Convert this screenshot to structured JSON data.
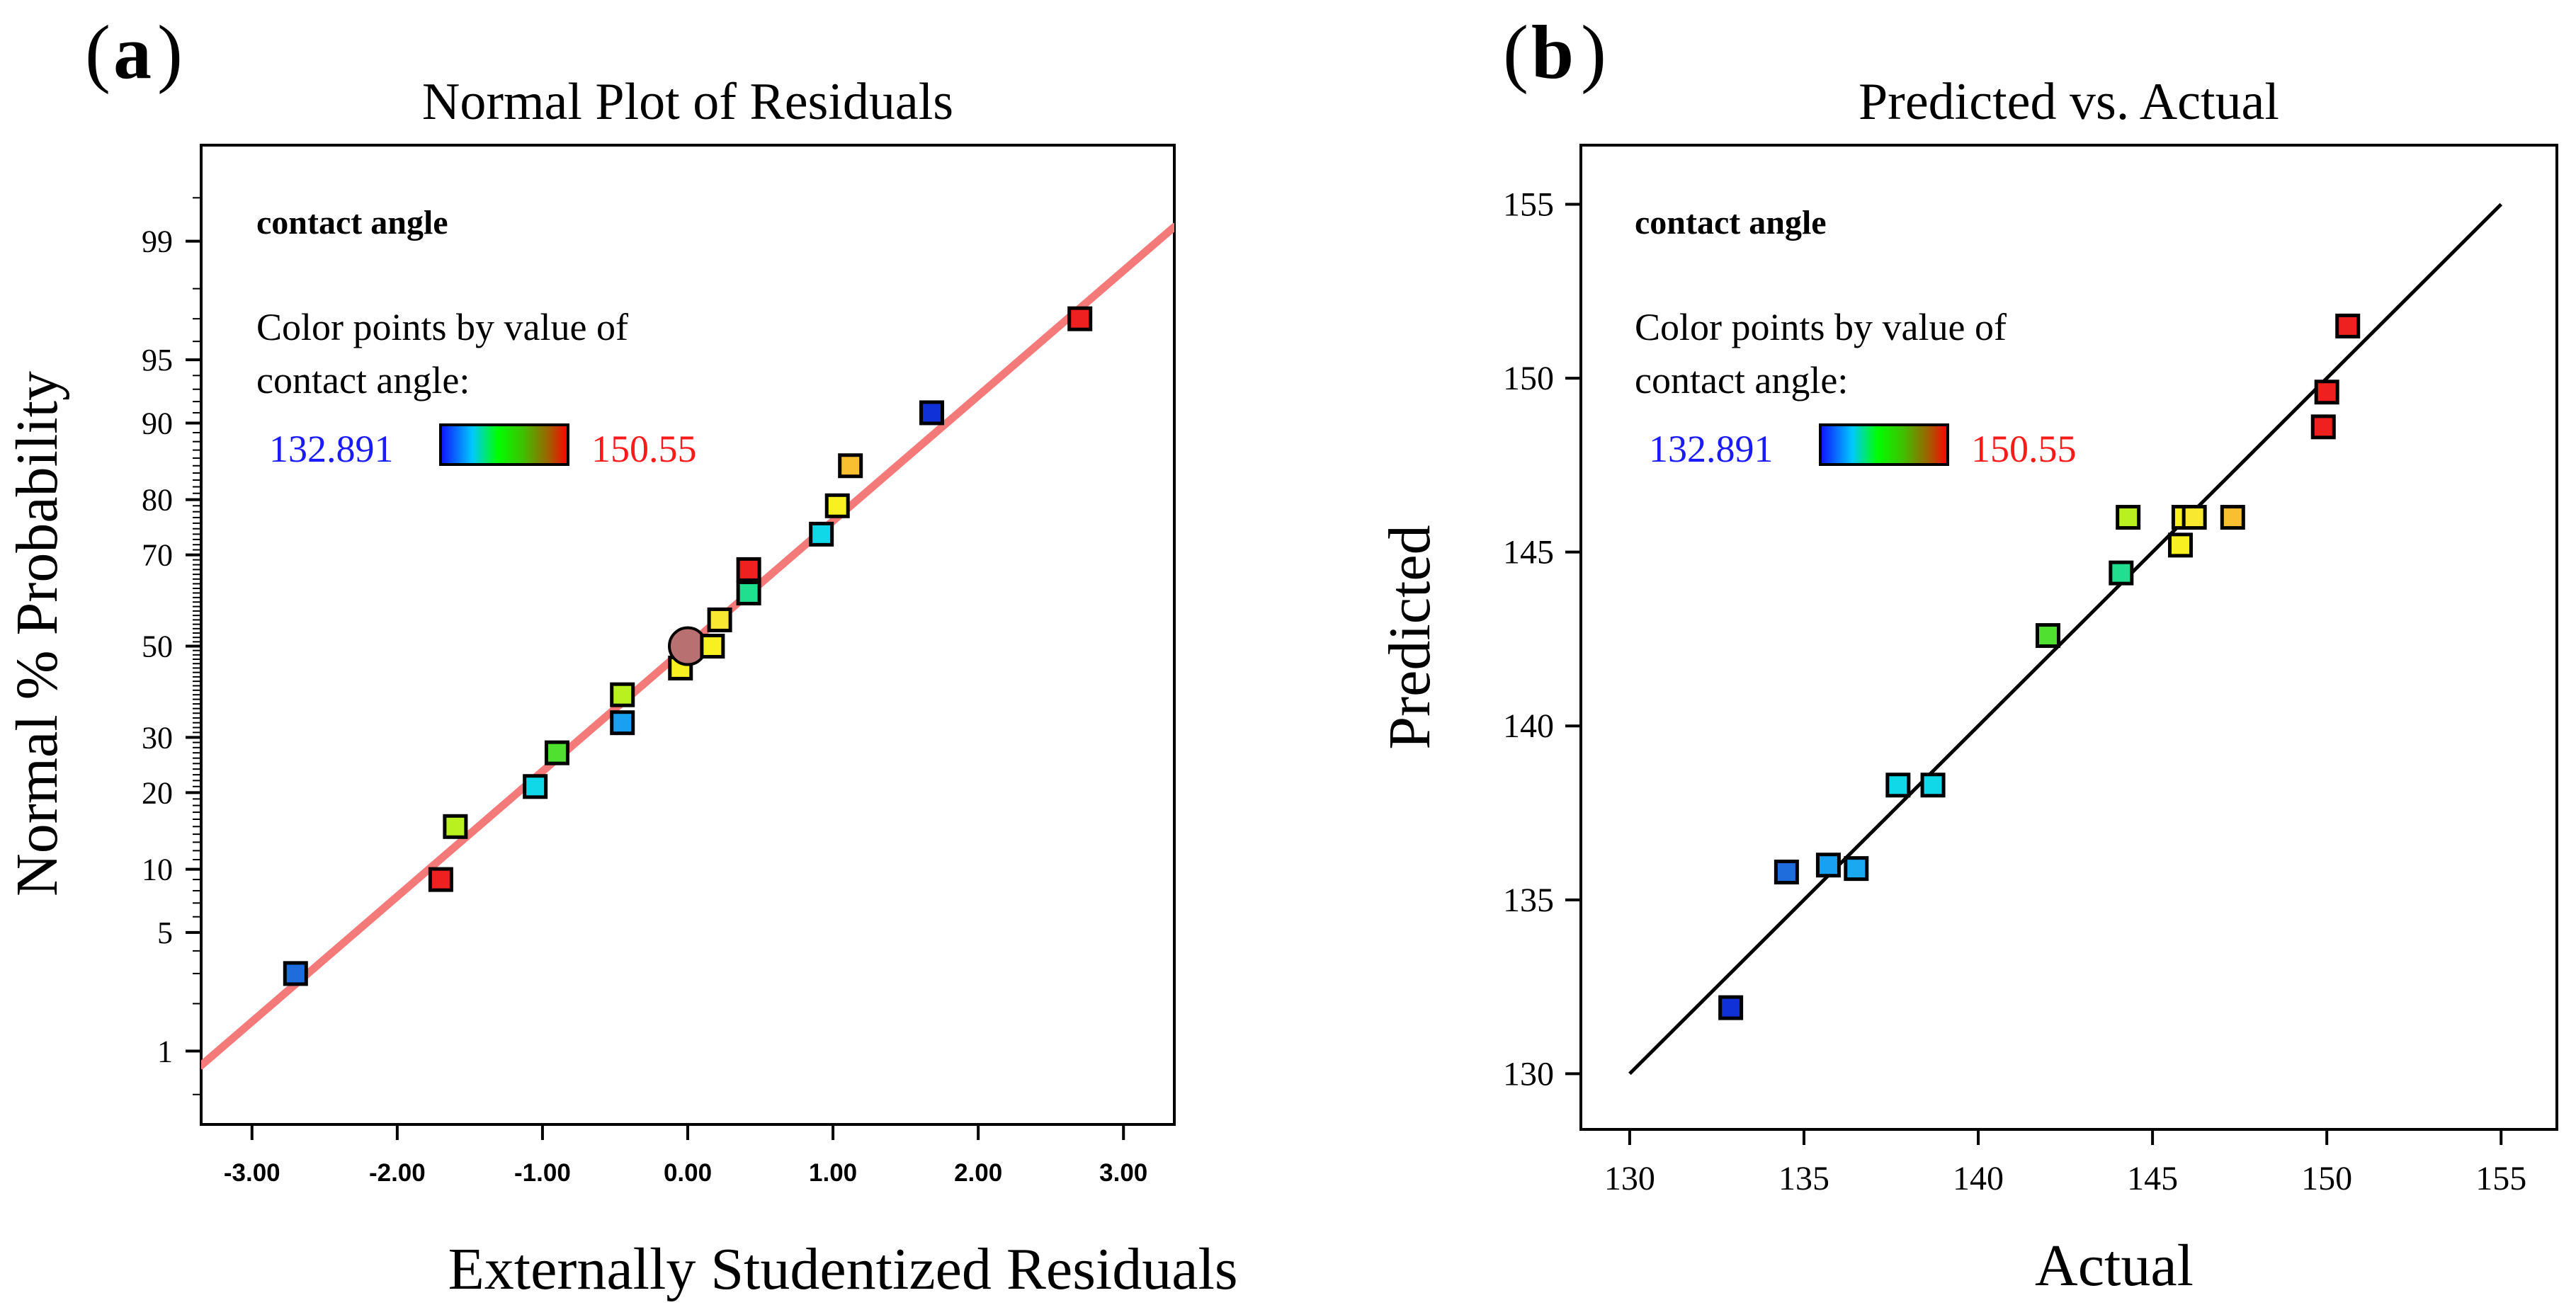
{
  "chart_data": [
    {
      "panel_label": "a",
      "type": "scatter",
      "title": "Normal Plot of Residuals",
      "xlabel": "Externally Studentized Residuals",
      "ylabel": "Normal % Probability",
      "xlim": [
        -3.35,
        3.35
      ],
      "ylim_probability": [
        0.3,
        99.8
      ],
      "y_scale": "normal-probability",
      "xticks": [
        "-3.00",
        "-2.00",
        "-1.00",
        "0.00",
        "1.00",
        "2.00",
        "3.00"
      ],
      "xtick_values": [
        -3,
        -2,
        -1,
        0,
        1,
        2,
        3
      ],
      "yticks": [
        1,
        5,
        10,
        20,
        30,
        50,
        70,
        80,
        90,
        95,
        99
      ],
      "legend": {
        "response": "contact angle",
        "color_caption_1": "Color points by value of",
        "color_caption_2": "contact angle:",
        "min_label": "132.891",
        "max_label": "150.55",
        "gradient": [
          "#1010ff",
          "#00e0ff",
          "#00ff00",
          "#c0ff00",
          "#ffff00",
          "#ff0000"
        ]
      },
      "reference_line": {
        "color": "#f47a7a",
        "points": [
          [
            -3.35,
            0.8
          ],
          [
            3.35,
            99.2
          ]
        ]
      },
      "points": [
        {
          "x": -2.7,
          "y": 3,
          "color": "#1f6ddc"
        },
        {
          "x": -1.7,
          "y": 9,
          "color": "#ee2020"
        },
        {
          "x": -1.6,
          "y": 15,
          "color": "#b8f020"
        },
        {
          "x": -1.05,
          "y": 21,
          "color": "#10d8e8"
        },
        {
          "x": -0.9,
          "y": 27,
          "color": "#50e030"
        },
        {
          "x": -0.45,
          "y": 33,
          "color": "#1aa0f0"
        },
        {
          "x": -0.45,
          "y": 39,
          "color": "#b8f020"
        },
        {
          "x": -0.05,
          "y": 45,
          "color": "#f8f020"
        },
        {
          "x": 0.0,
          "y": 50,
          "color": "#b87070",
          "center_point": true
        },
        {
          "x": 0.17,
          "y": 50,
          "color": "#f8f020"
        },
        {
          "x": 0.22,
          "y": 56,
          "color": "#f8e830"
        },
        {
          "x": 0.42,
          "y": 62,
          "color": "#20e090"
        },
        {
          "x": 0.42,
          "y": 67,
          "color": "#ee2020"
        },
        {
          "x": 0.92,
          "y": 74,
          "color": "#10d8e8"
        },
        {
          "x": 1.03,
          "y": 79,
          "color": "#f8f020"
        },
        {
          "x": 1.12,
          "y": 85,
          "color": "#f8c030"
        },
        {
          "x": 1.68,
          "y": 91,
          "color": "#1030d8"
        },
        {
          "x": 2.7,
          "y": 97,
          "color": "#ee2020"
        }
      ]
    },
    {
      "panel_label": "b",
      "type": "scatter",
      "title": "Predicted vs. Actual",
      "xlabel": "Actual",
      "ylabel": "Predicted",
      "xlim": [
        128.6,
        156.6
      ],
      "ylim": [
        128.4,
        156.7
      ],
      "xticks": [
        "130",
        "135",
        "140",
        "145",
        "150",
        "155"
      ],
      "xtick_values": [
        130,
        135,
        140,
        145,
        150,
        155
      ],
      "yticks": [
        "130",
        "135",
        "140",
        "145",
        "150",
        "155"
      ],
      "ytick_values": [
        130,
        135,
        140,
        145,
        150,
        155
      ],
      "legend": {
        "response": "contact angle",
        "color_caption_1": "Color points by value of",
        "color_caption_2": "contact angle:",
        "min_label": "132.891",
        "max_label": "150.55",
        "gradient": [
          "#1010ff",
          "#00e0ff",
          "#00ff00",
          "#c0ff00",
          "#ffff00",
          "#ff0000"
        ]
      },
      "reference_line": {
        "color": "#000000",
        "points": [
          [
            130,
            130
          ],
          [
            155,
            155
          ]
        ]
      },
      "points": [
        {
          "x": 132.9,
          "y": 131.9,
          "color": "#1030d8"
        },
        {
          "x": 134.5,
          "y": 135.8,
          "color": "#1f6ddc"
        },
        {
          "x": 135.7,
          "y": 136.0,
          "color": "#1aa0f0"
        },
        {
          "x": 136.5,
          "y": 135.9,
          "color": "#1aa8f0"
        },
        {
          "x": 137.7,
          "y": 138.3,
          "color": "#10d8e8"
        },
        {
          "x": 138.7,
          "y": 138.3,
          "color": "#10d8e8"
        },
        {
          "x": 142.0,
          "y": 142.6,
          "color": "#50e030"
        },
        {
          "x": 144.1,
          "y": 144.4,
          "color": "#20e090"
        },
        {
          "x": 144.3,
          "y": 146.0,
          "color": "#b8f020"
        },
        {
          "x": 145.8,
          "y": 145.2,
          "color": "#f8f020"
        },
        {
          "x": 145.9,
          "y": 146.0,
          "color": "#f8f020"
        },
        {
          "x": 146.2,
          "y": 146.0,
          "color": "#f8e830"
        },
        {
          "x": 147.3,
          "y": 146.0,
          "color": "#f8c030"
        },
        {
          "x": 149.9,
          "y": 148.6,
          "color": "#ee2020"
        },
        {
          "x": 150.0,
          "y": 149.6,
          "color": "#ee2020"
        },
        {
          "x": 150.6,
          "y": 151.5,
          "color": "#ee2020"
        }
      ]
    }
  ]
}
